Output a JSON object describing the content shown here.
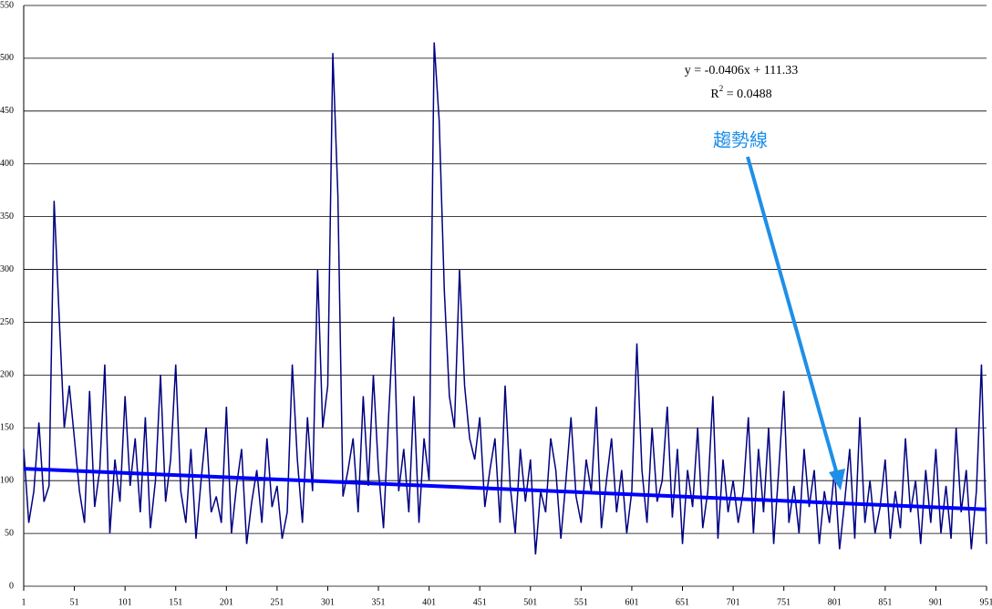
{
  "chart_data": {
    "type": "line",
    "x": [
      1,
      6,
      11,
      16,
      21,
      26,
      31,
      36,
      41,
      46,
      51,
      56,
      61,
      66,
      71,
      76,
      81,
      86,
      91,
      96,
      101,
      106,
      111,
      116,
      121,
      126,
      131,
      136,
      141,
      146,
      151,
      156,
      161,
      166,
      171,
      176,
      181,
      186,
      191,
      196,
      201,
      206,
      211,
      216,
      221,
      226,
      231,
      236,
      241,
      246,
      251,
      256,
      261,
      266,
      271,
      276,
      281,
      286,
      291,
      296,
      301,
      306,
      311,
      316,
      321,
      326,
      331,
      336,
      341,
      346,
      351,
      356,
      361,
      366,
      371,
      376,
      381,
      386,
      391,
      396,
      401,
      406,
      411,
      416,
      421,
      426,
      431,
      436,
      441,
      446,
      451,
      456,
      461,
      466,
      471,
      476,
      481,
      486,
      491,
      496,
      501,
      506,
      511,
      516,
      521,
      526,
      531,
      536,
      541,
      546,
      551,
      556,
      561,
      566,
      571,
      576,
      581,
      586,
      591,
      596,
      601,
      606,
      611,
      616,
      621,
      626,
      631,
      636,
      641,
      646,
      651,
      656,
      661,
      666,
      671,
      676,
      681,
      686,
      691,
      696,
      701,
      706,
      711,
      716,
      721,
      726,
      731,
      736,
      741,
      746,
      751,
      756,
      761,
      766,
      771,
      776,
      781,
      786,
      791,
      796,
      801,
      806,
      811,
      816,
      821,
      826,
      831,
      836,
      841,
      846,
      851,
      856,
      861,
      866,
      871,
      876,
      881,
      886,
      891,
      896,
      901,
      906,
      911,
      916,
      921,
      926,
      931,
      936,
      941,
      946,
      951
    ],
    "series": [
      {
        "color": "#000080",
        "values": [
          130,
          60,
          90,
          155,
          80,
          95,
          365,
          255,
          150,
          190,
          140,
          90,
          60,
          185,
          75,
          110,
          210,
          50,
          120,
          80,
          180,
          95,
          140,
          70,
          160,
          55,
          100,
          200,
          80,
          120,
          210,
          90,
          60,
          130,
          45,
          100,
          150,
          70,
          85,
          60,
          170,
          50,
          95,
          130,
          40,
          80,
          110,
          60,
          140,
          75,
          95,
          45,
          70,
          210,
          120,
          60,
          160,
          90,
          300,
          150,
          190,
          505,
          370,
          85,
          110,
          140,
          70,
          180,
          95,
          200,
          110,
          55,
          160,
          255,
          90,
          130,
          70,
          180,
          60,
          140,
          100,
          515,
          440,
          280,
          180,
          150,
          300,
          190,
          140,
          120,
          160,
          75,
          110,
          140,
          60,
          190,
          95,
          50,
          130,
          80,
          120,
          30,
          90,
          70,
          140,
          110,
          45,
          100,
          160,
          85,
          60,
          120,
          90,
          170,
          55,
          100,
          140,
          70,
          110,
          50,
          90,
          230,
          110,
          60,
          150,
          80,
          100,
          170,
          65,
          130,
          40,
          110,
          75,
          150,
          55,
          90,
          180,
          45,
          120,
          70,
          100,
          60,
          90,
          160,
          50,
          130,
          70,
          150,
          40,
          110,
          185,
          60,
          95,
          50,
          130,
          75,
          110,
          40,
          90,
          60,
          110,
          35,
          80,
          130,
          45,
          160,
          60,
          100,
          50,
          75,
          120,
          45,
          90,
          55,
          140,
          70,
          100,
          40,
          110,
          60,
          130,
          50,
          95,
          45,
          150,
          70,
          110,
          35,
          90,
          210,
          40
        ]
      }
    ],
    "trendline": {
      "color": "#0000ff",
      "x": [
        1,
        951
      ],
      "values": [
        111.29,
        72.72
      ]
    },
    "equation": "y = -0.0406x + 111.33",
    "r2_prefix": "R",
    "r2_exponent": "2",
    "r2_value": " = 0.0488",
    "callout": {
      "text": "趨勢線",
      "color": "#1e8fe8"
    },
    "xlim": [
      1,
      951
    ],
    "xticks": [
      1,
      51,
      101,
      151,
      201,
      251,
      301,
      351,
      401,
      451,
      501,
      551,
      601,
      651,
      701,
      751,
      801,
      851,
      901,
      951
    ],
    "ylim": [
      0,
      550
    ],
    "yticks": [
      0,
      50,
      100,
      150,
      200,
      250,
      300,
      350,
      400,
      450,
      500,
      550
    ],
    "grid": true
  }
}
